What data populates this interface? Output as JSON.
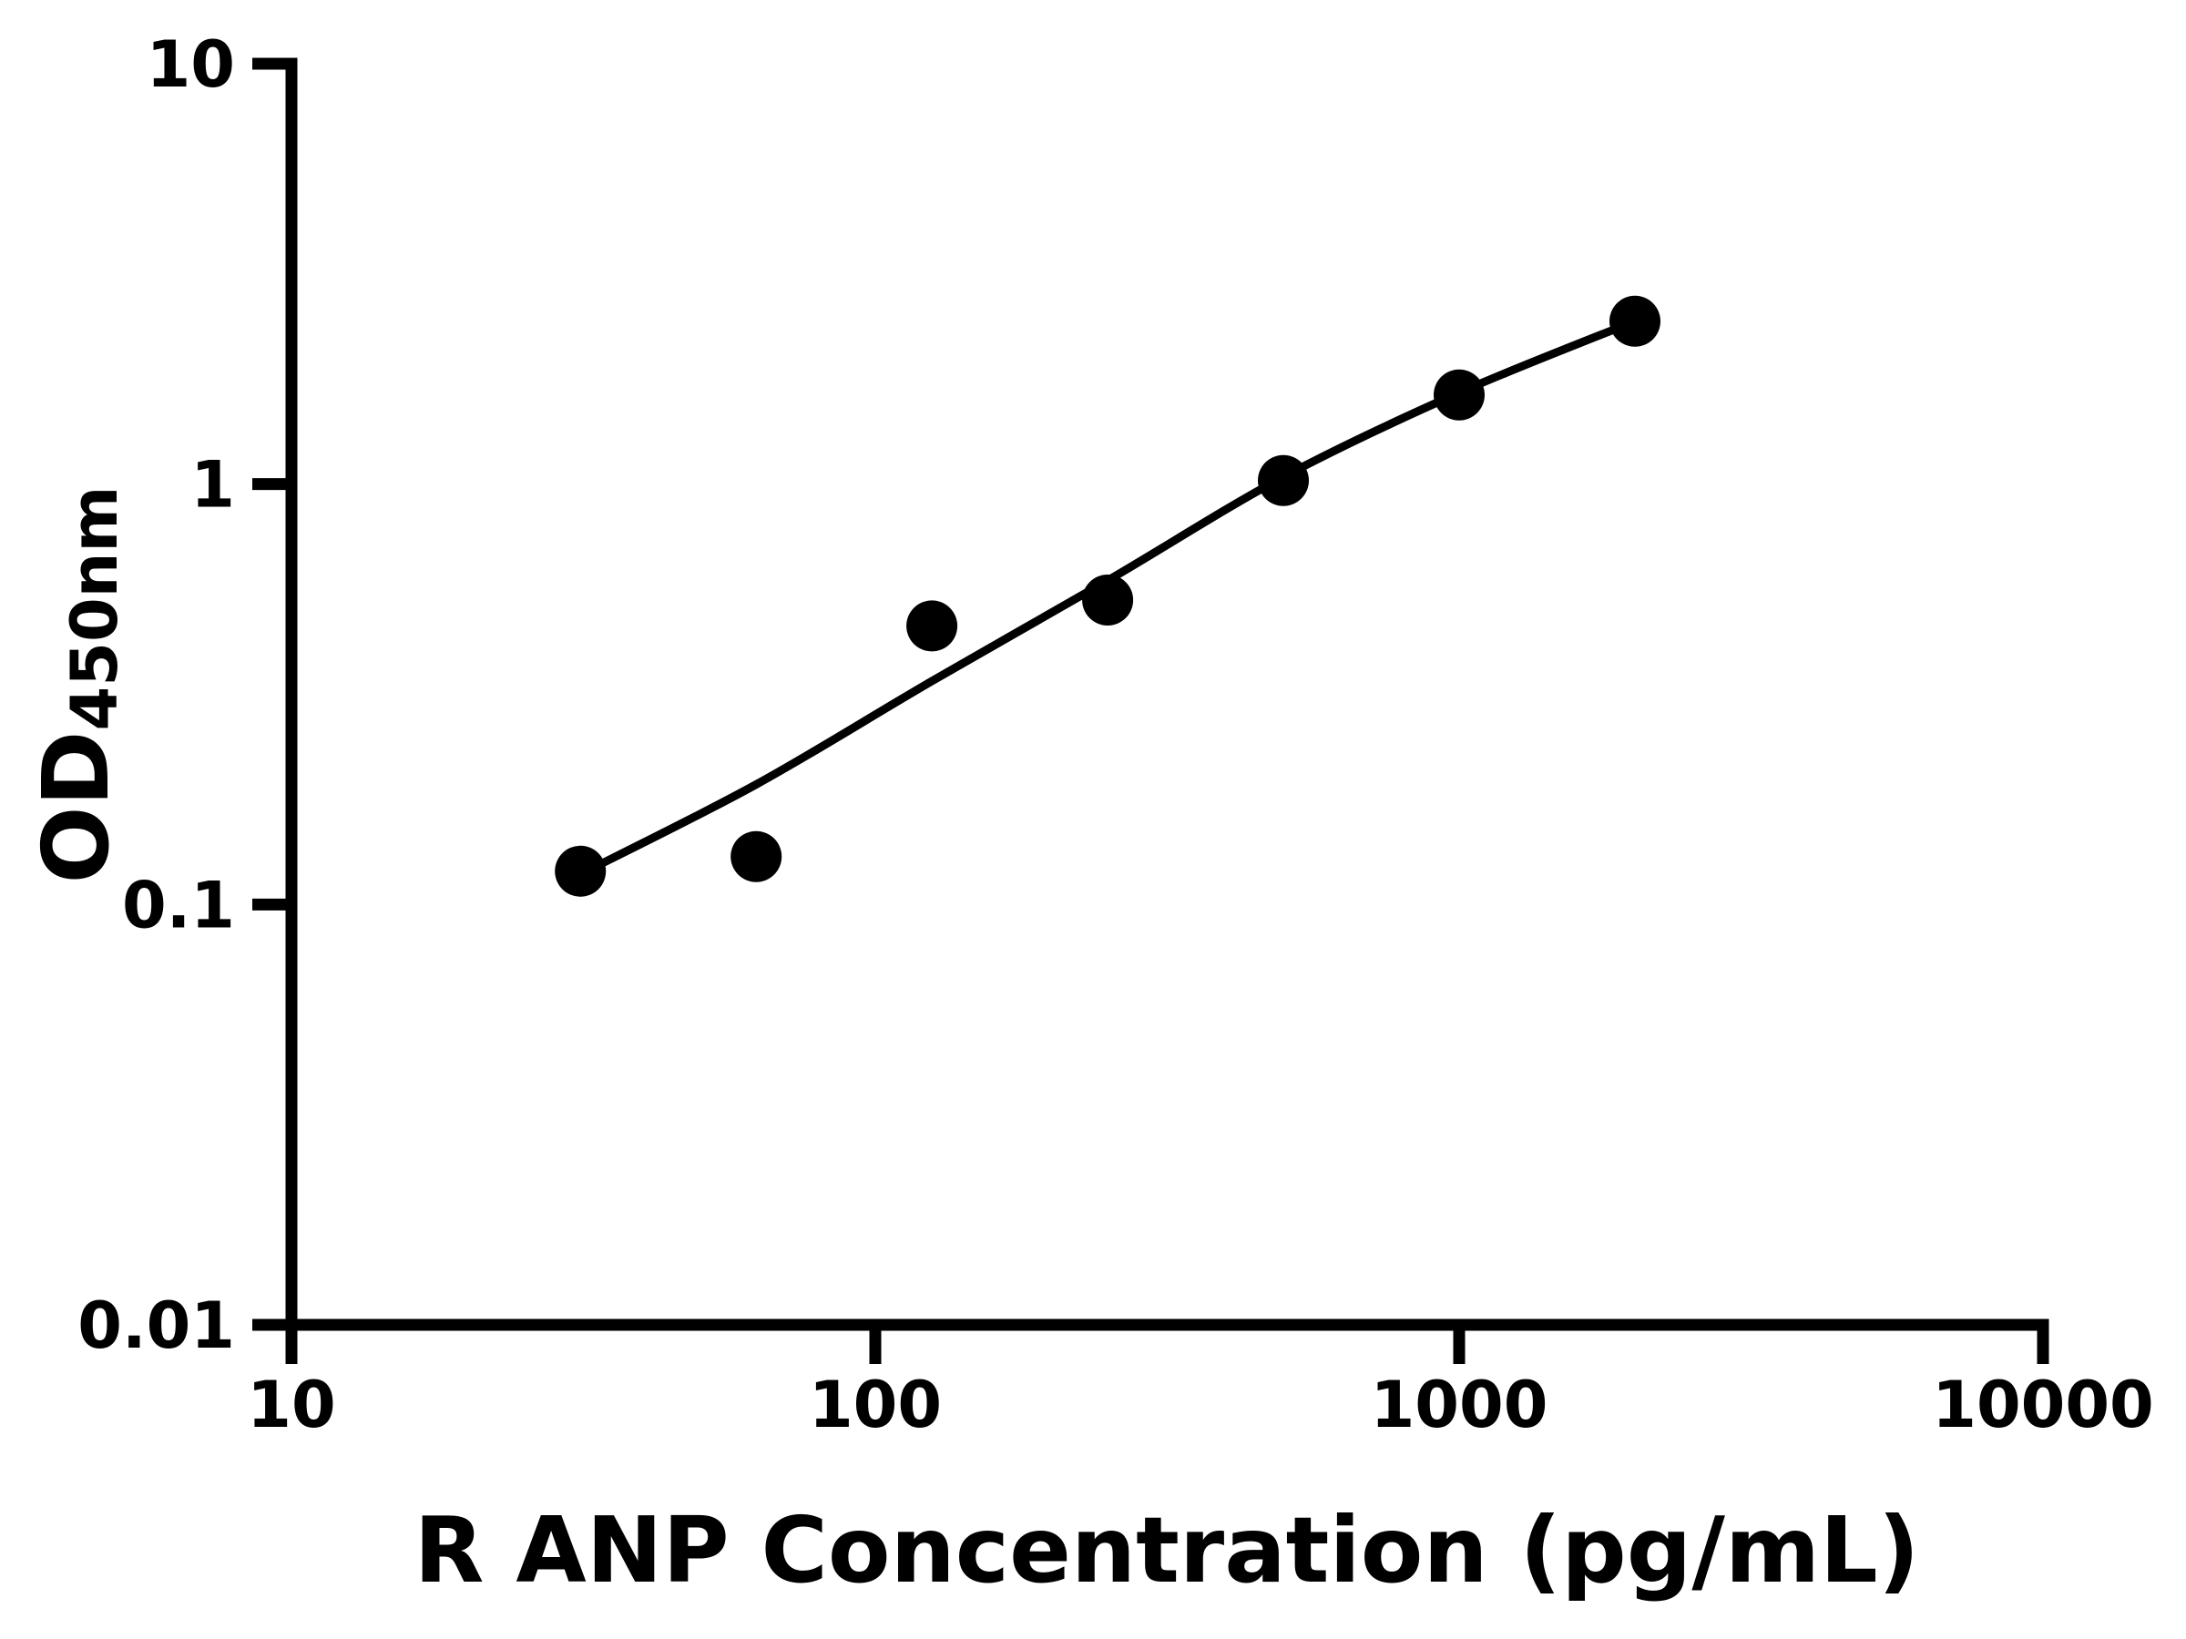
{
  "chart_data": {
    "type": "scatter",
    "title": "",
    "xlabel": "R ANP Concentration (pg/mL)",
    "ylabel": "OD450nm",
    "ylabel_main": "OD",
    "ylabel_sub": "450nm",
    "x_scale": "log",
    "y_scale": "log",
    "xlim": [
      10,
      10000
    ],
    "ylim": [
      0.01,
      10
    ],
    "x_ticks": [
      {
        "value": 10,
        "label": "10"
      },
      {
        "value": 100,
        "label": "100"
      },
      {
        "value": 1000,
        "label": "1000"
      },
      {
        "value": 10000,
        "label": "10000"
      }
    ],
    "y_ticks": [
      {
        "value": 10,
        "label": "10"
      },
      {
        "value": 1,
        "label": "1"
      },
      {
        "value": 0.1,
        "label": "0.1"
      },
      {
        "value": 0.01,
        "label": "0.01"
      }
    ],
    "grid": false,
    "legend": "none",
    "series": [
      {
        "name": "standard-points",
        "marker": "filled-circle",
        "x": [
          31.25,
          62.5,
          125,
          250,
          500,
          1000,
          2000
        ],
        "y": [
          0.12,
          0.13,
          0.46,
          0.53,
          1.02,
          1.63,
          2.44
        ]
      }
    ],
    "fit_curve": {
      "name": "standard-curve-fit",
      "x": [
        31.25,
        62.5,
        125,
        250,
        500,
        1000,
        2000
      ],
      "y": [
        0.118,
        0.193,
        0.34,
        0.59,
        1.04,
        1.65,
        2.44
      ]
    },
    "colors": {
      "foreground": "#000000",
      "background": "#ffffff"
    }
  }
}
